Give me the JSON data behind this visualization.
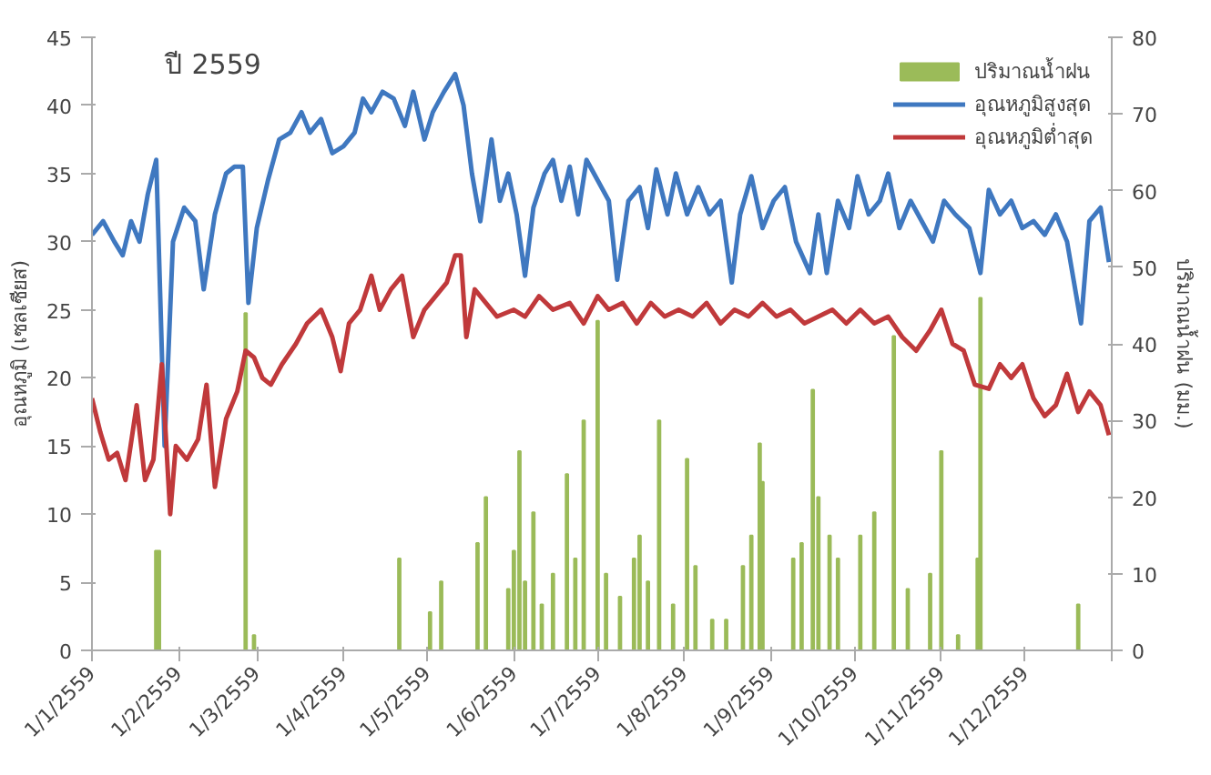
{
  "chart_data": {
    "type": "line",
    "title": "ปี 2559",
    "ylabel": "อุณหภูมิ (เซลเซียส)",
    "y2label": "ปริมาณน้ำฝน (มม.)",
    "xlim": [
      "2559-01-01",
      "2560-01-01"
    ],
    "xticks": [
      {
        "value": "2559-01-01",
        "label": "1/1/2559"
      },
      {
        "value": "2559-02-01",
        "label": "1/2/2559"
      },
      {
        "value": "2559-03-01",
        "label": "1/3/2559"
      },
      {
        "value": "2559-04-01",
        "label": "1/4/2559"
      },
      {
        "value": "2559-05-01",
        "label": "1/5/2559"
      },
      {
        "value": "2559-06-01",
        "label": "1/6/2559"
      },
      {
        "value": "2559-07-01",
        "label": "1/7/2559"
      },
      {
        "value": "2559-08-01",
        "label": "1/8/2559"
      },
      {
        "value": "2559-09-01",
        "label": "1/9/2559"
      },
      {
        "value": "2559-10-01",
        "label": "1/10/2559"
      },
      {
        "value": "2559-11-01",
        "label": "1/11/2559"
      },
      {
        "value": "2559-12-01",
        "label": "1/12/2559"
      },
      {
        "value": "2560-01-01",
        "label": null
      }
    ],
    "ylim": [
      0,
      45
    ],
    "yticks": [
      0,
      5,
      10,
      15,
      20,
      25,
      30,
      35,
      40,
      45
    ],
    "y2lim": [
      0,
      80
    ],
    "y2ticks": [
      0,
      10,
      20,
      30,
      40,
      50,
      60,
      70,
      80
    ],
    "grid": false,
    "legend": "top right",
    "line_style": "solid",
    "marker": "none",
    "series": [
      {
        "name": "ปริมาณน้ำฝน",
        "type": "bar",
        "axis": "y2",
        "color": "#9bbb59",
        "x": [
          "2559-01-24",
          "2559-01-25",
          "2559-02-25",
          "2559-02-28",
          "2559-04-21",
          "2559-05-02",
          "2559-05-06",
          "2559-05-19",
          "2559-05-22",
          "2559-05-30",
          "2559-06-01",
          "2559-06-03",
          "2559-06-05",
          "2559-06-08",
          "2559-06-11",
          "2559-06-15",
          "2559-06-20",
          "2559-06-23",
          "2559-06-26",
          "2559-07-01",
          "2559-07-04",
          "2559-07-09",
          "2559-07-14",
          "2559-07-16",
          "2559-07-19",
          "2559-07-23",
          "2559-07-28",
          "2559-08-02",
          "2559-08-05",
          "2559-08-11",
          "2559-08-16",
          "2559-08-22",
          "2559-08-25",
          "2559-08-28",
          "2559-08-29",
          "2559-09-09",
          "2559-09-12",
          "2559-09-16",
          "2559-09-18",
          "2559-09-22",
          "2559-09-25",
          "2559-10-03",
          "2559-10-08",
          "2559-10-15",
          "2559-10-20",
          "2559-10-28",
          "2559-11-01",
          "2559-11-07",
          "2559-11-14",
          "2559-11-15",
          "2559-12-20"
        ],
        "values": [
          13,
          13,
          44,
          2,
          12,
          5,
          9,
          14,
          20,
          8,
          13,
          26,
          9,
          18,
          6,
          10,
          23,
          12,
          30,
          43,
          10,
          7,
          12,
          15,
          9,
          30,
          6,
          25,
          11,
          4,
          4,
          11,
          15,
          27,
          22,
          12,
          14,
          34,
          20,
          15,
          12,
          15,
          18,
          41,
          8,
          10,
          26,
          2,
          12,
          46,
          6
        ]
      },
      {
        "name": "อุณหภูมิสูงสุด",
        "color": "#3f78c0",
        "x": [
          "2559-01-01",
          "2559-01-05",
          "2559-01-09",
          "2559-01-12",
          "2559-01-15",
          "2559-01-18",
          "2559-01-21",
          "2559-01-24",
          "2559-01-27",
          "2559-01-30",
          "2559-02-03",
          "2559-02-07",
          "2559-02-10",
          "2559-02-14",
          "2559-02-18",
          "2559-02-21",
          "2559-02-24",
          "2559-02-26",
          "2559-03-01",
          "2559-03-05",
          "2559-03-09",
          "2559-03-13",
          "2559-03-17",
          "2559-03-20",
          "2559-03-24",
          "2559-03-28",
          "2559-04-01",
          "2559-04-05",
          "2559-04-08",
          "2559-04-11",
          "2559-04-15",
          "2559-04-19",
          "2559-04-23",
          "2559-04-26",
          "2559-04-30",
          "2559-05-03",
          "2559-05-07",
          "2559-05-11",
          "2559-05-14",
          "2559-05-17",
          "2559-05-20",
          "2559-05-24",
          "2559-05-27",
          "2559-05-30",
          "2559-06-02",
          "2559-06-05",
          "2559-06-08",
          "2559-06-12",
          "2559-06-15",
          "2559-06-18",
          "2559-06-21",
          "2559-06-24",
          "2559-06-27",
          "2559-07-01",
          "2559-07-05",
          "2559-07-08",
          "2559-07-12",
          "2559-07-16",
          "2559-07-19",
          "2559-07-22",
          "2559-07-26",
          "2559-07-29",
          "2559-08-02",
          "2559-08-06",
          "2559-08-10",
          "2559-08-14",
          "2559-08-18",
          "2559-08-21",
          "2559-08-25",
          "2559-08-29",
          "2559-09-02",
          "2559-09-06",
          "2559-09-10",
          "2559-09-15",
          "2559-09-18",
          "2559-09-21",
          "2559-09-25",
          "2559-09-29",
          "2559-10-02",
          "2559-10-06",
          "2559-10-10",
          "2559-10-13",
          "2559-10-17",
          "2559-10-21",
          "2559-10-25",
          "2559-10-29",
          "2559-11-02",
          "2559-11-06",
          "2559-11-11",
          "2559-11-15",
          "2559-11-18",
          "2559-11-22",
          "2559-11-26",
          "2559-11-30",
          "2559-12-04",
          "2559-12-08",
          "2559-12-12",
          "2559-12-16",
          "2559-12-21",
          "2559-12-24",
          "2559-12-28",
          "2559-12-31"
        ],
        "values": [
          30.5,
          31.5,
          30,
          29,
          31.5,
          30,
          33.5,
          36,
          15,
          30,
          32.5,
          31.5,
          26.5,
          32,
          35,
          35.5,
          35.5,
          25.5,
          31,
          34.5,
          37.5,
          38,
          39.5,
          38,
          39,
          36.5,
          37,
          38,
          40.5,
          39.5,
          41,
          40.5,
          38.5,
          41,
          37.5,
          39.5,
          41,
          42.3,
          40,
          35,
          31.5,
          37.5,
          33,
          35,
          32,
          27.5,
          32.5,
          35,
          36,
          33,
          35.5,
          32,
          36,
          34.5,
          33,
          27.2,
          33,
          34,
          31,
          35.3,
          32,
          35,
          32,
          34,
          32,
          33,
          27,
          32,
          34.8,
          31,
          33,
          34,
          30,
          27.7,
          32,
          27.7,
          33,
          31,
          34.8,
          32,
          33,
          35,
          31,
          33,
          31.5,
          30,
          33,
          32,
          31,
          27.7,
          33.8,
          32,
          33,
          31,
          31.5,
          30.5,
          32,
          30,
          24,
          31.5,
          32.5,
          28.5
        ]
      },
      {
        "name": "อุณหภูมิต่ำสุด",
        "color": "#c0393b",
        "x": [
          "2559-01-01",
          "2559-01-04",
          "2559-01-07",
          "2559-01-10",
          "2559-01-13",
          "2559-01-17",
          "2559-01-20",
          "2559-01-23",
          "2559-01-26",
          "2559-01-29",
          "2559-01-31",
          "2559-02-04",
          "2559-02-08",
          "2559-02-11",
          "2559-02-14",
          "2559-02-18",
          "2559-02-22",
          "2559-02-25",
          "2559-02-28",
          "2559-03-03",
          "2559-03-06",
          "2559-03-10",
          "2559-03-15",
          "2559-03-19",
          "2559-03-24",
          "2559-03-28",
          "2559-03-31",
          "2559-04-03",
          "2559-04-07",
          "2559-04-11",
          "2559-04-14",
          "2559-04-18",
          "2559-04-22",
          "2559-04-26",
          "2559-04-30",
          "2559-05-04",
          "2559-05-08",
          "2559-05-11",
          "2559-05-13",
          "2559-05-15",
          "2559-05-18",
          "2559-05-22",
          "2559-05-26",
          "2559-06-01",
          "2559-06-05",
          "2559-06-10",
          "2559-06-15",
          "2559-06-21",
          "2559-06-26",
          "2559-07-01",
          "2559-07-05",
          "2559-07-10",
          "2559-07-15",
          "2559-07-20",
          "2559-07-25",
          "2559-07-30",
          "2559-08-04",
          "2559-08-09",
          "2559-08-14",
          "2559-08-19",
          "2559-08-24",
          "2559-08-29",
          "2559-09-03",
          "2559-09-08",
          "2559-09-13",
          "2559-09-18",
          "2559-09-23",
          "2559-09-28",
          "2559-10-03",
          "2559-10-08",
          "2559-10-13",
          "2559-10-18",
          "2559-10-23",
          "2559-10-28",
          "2559-11-01",
          "2559-11-05",
          "2559-11-09",
          "2559-11-13",
          "2559-11-18",
          "2559-11-22",
          "2559-11-26",
          "2559-11-30",
          "2559-12-04",
          "2559-12-08",
          "2559-12-12",
          "2559-12-16",
          "2559-12-20",
          "2559-12-24",
          "2559-12-28",
          "2559-12-31"
        ],
        "values": [
          18.5,
          16,
          14,
          14.5,
          12.5,
          18,
          12.5,
          14,
          21,
          10,
          15,
          14,
          15.5,
          19.5,
          12,
          17,
          19,
          22,
          21.5,
          20,
          19.5,
          21,
          22.5,
          24,
          25,
          23,
          20.5,
          24,
          25,
          27.5,
          25,
          26.5,
          27.5,
          23,
          25,
          26,
          27,
          29,
          29,
          23,
          26.5,
          25.5,
          24.5,
          25,
          24.5,
          26,
          25,
          25.5,
          24,
          26,
          25,
          25.5,
          24,
          25.5,
          24.5,
          25,
          24.5,
          25.5,
          24,
          25,
          24.5,
          25.5,
          24.5,
          25,
          24,
          24.5,
          25,
          24,
          25,
          24,
          24.5,
          23,
          22,
          23.5,
          25,
          22.5,
          22,
          19.5,
          19.2,
          21,
          20,
          21,
          18.5,
          17.2,
          18,
          20.3,
          17.5,
          19,
          18,
          15.8
        ]
      }
    ]
  }
}
